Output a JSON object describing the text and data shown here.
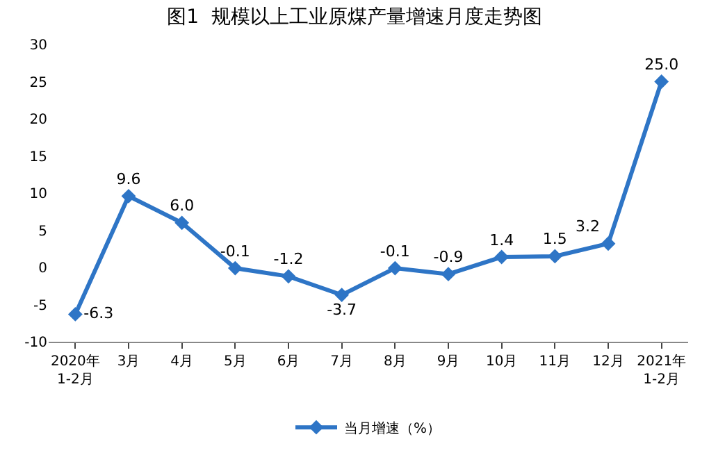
{
  "chart_data": {
    "type": "line",
    "title": "图1  规模以上工业原煤产量增速月度走势图",
    "categories": [
      "2020年\n1-2月",
      "3月",
      "4月",
      "5月",
      "6月",
      "7月",
      "8月",
      "9月",
      "10月",
      "11月",
      "12月",
      "2021年\n1-2月"
    ],
    "series": [
      {
        "name": "当月增速（%）",
        "color": "#2e75c6",
        "values": [
          -6.3,
          9.6,
          6.0,
          -0.1,
          -1.2,
          -3.7,
          -0.1,
          -0.9,
          1.4,
          1.5,
          3.2,
          25.0
        ],
        "value_labels": [
          "-6.3",
          "9.6",
          "6.0",
          "-0.1",
          "-1.2",
          "-3.7",
          "-0.1",
          "-0.9",
          "1.4",
          "1.5",
          "3.2",
          "25.0"
        ]
      }
    ],
    "ylim": [
      -10,
      30
    ],
    "yticks": [
      -10,
      -5,
      0,
      5,
      10,
      15,
      20,
      25,
      30
    ],
    "grid": false,
    "legend": "bottom",
    "marker": "diamond",
    "line_style": "solid"
  }
}
